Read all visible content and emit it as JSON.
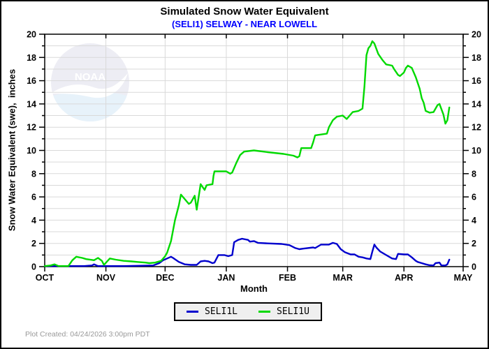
{
  "title": "Simulated Snow Water Equivalent",
  "subtitle": "(SELI1) SELWAY - NEAR LOWELL",
  "watermark": {
    "label": "NOAA"
  },
  "footer": {
    "plot_created": "Plot Created: 04/24/2026 3:00pm PDT"
  },
  "colors": {
    "subtitle": "#0000ff",
    "grid": "#d9d9d9",
    "frame": "#000000",
    "footer_text": "#999999",
    "legend_bg": "#efefef",
    "watermark_top": "#e2e2ee",
    "watermark_bottom": "#d8eaf7",
    "series_lower": "#0000cd",
    "series_upper": "#00d900"
  },
  "chart_data": {
    "type": "line",
    "title": "Simulated Snow Water Equivalent",
    "subtitle": "(SELI1) SELWAY - NEAR LOWELL",
    "xlabel": "Month",
    "ylabel": "Snow Water Equivalent (swe),  inches",
    "x_unit": "days since Oct 1",
    "x_domain": [
      0,
      212
    ],
    "x_tick_labels": [
      "OCT",
      "NOV",
      "DEC",
      "JAN",
      "FEB",
      "MAR",
      "APR",
      "MAY"
    ],
    "x_month_days": [
      0,
      31,
      61,
      92,
      123,
      151,
      182,
      212
    ],
    "ylim": [
      0,
      20
    ],
    "y_major_step": 2,
    "y_minor_step": 1,
    "y_tick_labels": [
      0,
      2,
      4,
      6,
      8,
      10,
      12,
      14,
      16,
      18,
      20
    ],
    "grid": true,
    "legend_position": "bottom",
    "series": [
      {
        "name": "SELI1L",
        "color": "#0000cd",
        "points": [
          [
            0,
            0.05
          ],
          [
            12,
            0.05
          ],
          [
            20,
            0.05
          ],
          [
            24,
            0.1
          ],
          [
            25,
            0.2
          ],
          [
            27,
            0.05
          ],
          [
            40,
            0.05
          ],
          [
            55,
            0.1
          ],
          [
            58,
            0.3
          ],
          [
            60,
            0.55
          ],
          [
            62,
            0.7
          ],
          [
            64,
            0.85
          ],
          [
            65,
            0.75
          ],
          [
            68,
            0.4
          ],
          [
            71,
            0.2
          ],
          [
            74,
            0.15
          ],
          [
            77,
            0.15
          ],
          [
            79,
            0.45
          ],
          [
            81,
            0.5
          ],
          [
            83,
            0.45
          ],
          [
            85,
            0.3
          ],
          [
            86,
            0.35
          ],
          [
            88,
            1.0
          ],
          [
            91,
            1.0
          ],
          [
            93,
            0.9
          ],
          [
            95,
            1.0
          ],
          [
            96,
            2.1
          ],
          [
            98,
            2.3
          ],
          [
            100,
            2.4
          ],
          [
            103,
            2.3
          ],
          [
            104,
            2.15
          ],
          [
            106,
            2.2
          ],
          [
            108,
            2.05
          ],
          [
            113,
            2.0
          ],
          [
            120,
            1.95
          ],
          [
            124,
            1.85
          ],
          [
            127,
            1.6
          ],
          [
            129,
            1.5
          ],
          [
            131,
            1.55
          ],
          [
            136,
            1.65
          ],
          [
            137,
            1.6
          ],
          [
            140,
            1.9
          ],
          [
            144,
            1.9
          ],
          [
            146,
            2.05
          ],
          [
            148,
            1.95
          ],
          [
            150,
            1.5
          ],
          [
            152,
            1.25
          ],
          [
            155,
            1.05
          ],
          [
            157,
            1.05
          ],
          [
            159,
            0.85
          ],
          [
            161,
            0.8
          ],
          [
            163,
            0.7
          ],
          [
            165,
            0.65
          ],
          [
            166,
            1.3
          ],
          [
            167,
            1.9
          ],
          [
            168,
            1.65
          ],
          [
            170,
            1.3
          ],
          [
            173,
            1.0
          ],
          [
            176,
            0.7
          ],
          [
            178,
            0.65
          ],
          [
            179,
            1.1
          ],
          [
            182,
            1.05
          ],
          [
            184,
            1.05
          ],
          [
            186,
            0.8
          ],
          [
            188,
            0.5
          ],
          [
            189,
            0.4
          ],
          [
            191,
            0.3
          ],
          [
            193,
            0.2
          ],
          [
            195,
            0.12
          ],
          [
            197,
            0.1
          ],
          [
            198,
            0.3
          ],
          [
            200,
            0.35
          ],
          [
            201,
            0.1
          ],
          [
            203,
            0.1
          ],
          [
            204,
            0.2
          ],
          [
            205,
            0.6
          ]
        ]
      },
      {
        "name": "SELI1U",
        "color": "#00d900",
        "points": [
          [
            0,
            0.05
          ],
          [
            3,
            0.1
          ],
          [
            5,
            0.2
          ],
          [
            7,
            0.05
          ],
          [
            12,
            0.05
          ],
          [
            14,
            0.55
          ],
          [
            16,
            0.85
          ],
          [
            19,
            0.75
          ],
          [
            21,
            0.65
          ],
          [
            25,
            0.55
          ],
          [
            27,
            0.75
          ],
          [
            29,
            0.5
          ],
          [
            30,
            0.15
          ],
          [
            33,
            0.7
          ],
          [
            36,
            0.6
          ],
          [
            40,
            0.5
          ],
          [
            44,
            0.45
          ],
          [
            47,
            0.4
          ],
          [
            51,
            0.35
          ],
          [
            53,
            0.3
          ],
          [
            56,
            0.35
          ],
          [
            59,
            0.5
          ],
          [
            61,
            0.9
          ],
          [
            62,
            1.2
          ],
          [
            64,
            2.2
          ],
          [
            66,
            4.0
          ],
          [
            68,
            5.3
          ],
          [
            69,
            6.2
          ],
          [
            71,
            5.8
          ],
          [
            73,
            5.4
          ],
          [
            74,
            5.5
          ],
          [
            76,
            6.1
          ],
          [
            77,
            4.9
          ],
          [
            78,
            6.0
          ],
          [
            79,
            7.1
          ],
          [
            81,
            6.6
          ],
          [
            82,
            7.0
          ],
          [
            85,
            7.1
          ],
          [
            85.5,
            7.8
          ],
          [
            86,
            8.2
          ],
          [
            92,
            8.2
          ],
          [
            94,
            8.0
          ],
          [
            95,
            8.1
          ],
          [
            97,
            8.9
          ],
          [
            99,
            9.6
          ],
          [
            101,
            9.9
          ],
          [
            106,
            10.0
          ],
          [
            113,
            9.85
          ],
          [
            121,
            9.7
          ],
          [
            126,
            9.55
          ],
          [
            128,
            9.4
          ],
          [
            129,
            9.5
          ],
          [
            130,
            10.2
          ],
          [
            135,
            10.2
          ],
          [
            136,
            10.7
          ],
          [
            137,
            11.3
          ],
          [
            143,
            11.45
          ],
          [
            144,
            12.0
          ],
          [
            146,
            12.6
          ],
          [
            148,
            12.9
          ],
          [
            151,
            13.0
          ],
          [
            153,
            12.7
          ],
          [
            156,
            13.3
          ],
          [
            159,
            13.4
          ],
          [
            161,
            13.6
          ],
          [
            162,
            15.5
          ],
          [
            163,
            18.2
          ],
          [
            164,
            18.8
          ],
          [
            165,
            19.0
          ],
          [
            166,
            19.4
          ],
          [
            167,
            19.2
          ],
          [
            169,
            18.3
          ],
          [
            171,
            17.8
          ],
          [
            173,
            17.4
          ],
          [
            176,
            17.3
          ],
          [
            177,
            17.0
          ],
          [
            179,
            16.5
          ],
          [
            180,
            16.4
          ],
          [
            182,
            16.7
          ],
          [
            183,
            17.1
          ],
          [
            184,
            17.3
          ],
          [
            186,
            17.1
          ],
          [
            188,
            16.3
          ],
          [
            190,
            15.3
          ],
          [
            191,
            14.5
          ],
          [
            192,
            14.1
          ],
          [
            193,
            13.4
          ],
          [
            195,
            13.25
          ],
          [
            197,
            13.3
          ],
          [
            199,
            13.9
          ],
          [
            200,
            14.0
          ],
          [
            202,
            13.1
          ],
          [
            203,
            12.3
          ],
          [
            204,
            12.6
          ],
          [
            205,
            13.7
          ]
        ]
      }
    ]
  }
}
